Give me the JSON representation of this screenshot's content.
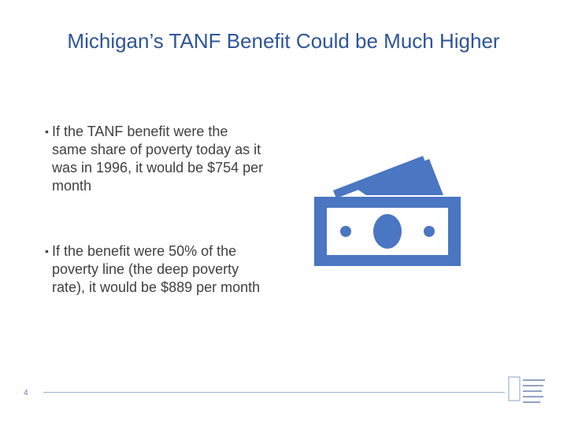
{
  "slide": {
    "title": "Michigan’s TANF Benefit Could be Much Higher",
    "bullets": [
      "If the TANF benefit were the same share of poverty today as it was in 1996, it would be $754 per month",
      "If the benefit were 50% of the poverty line (the deep poverty rate), it would be $889 per month"
    ],
    "bullet_marker": "•",
    "page_number": "4",
    "icon": "money-bill-icon",
    "logo": "center-for-budget-and-policy-priorities-logo",
    "colors": {
      "title": "#2e5597",
      "text": "#404040",
      "icon": "#4a76c2",
      "footer_line": "#9cb3d6"
    }
  }
}
